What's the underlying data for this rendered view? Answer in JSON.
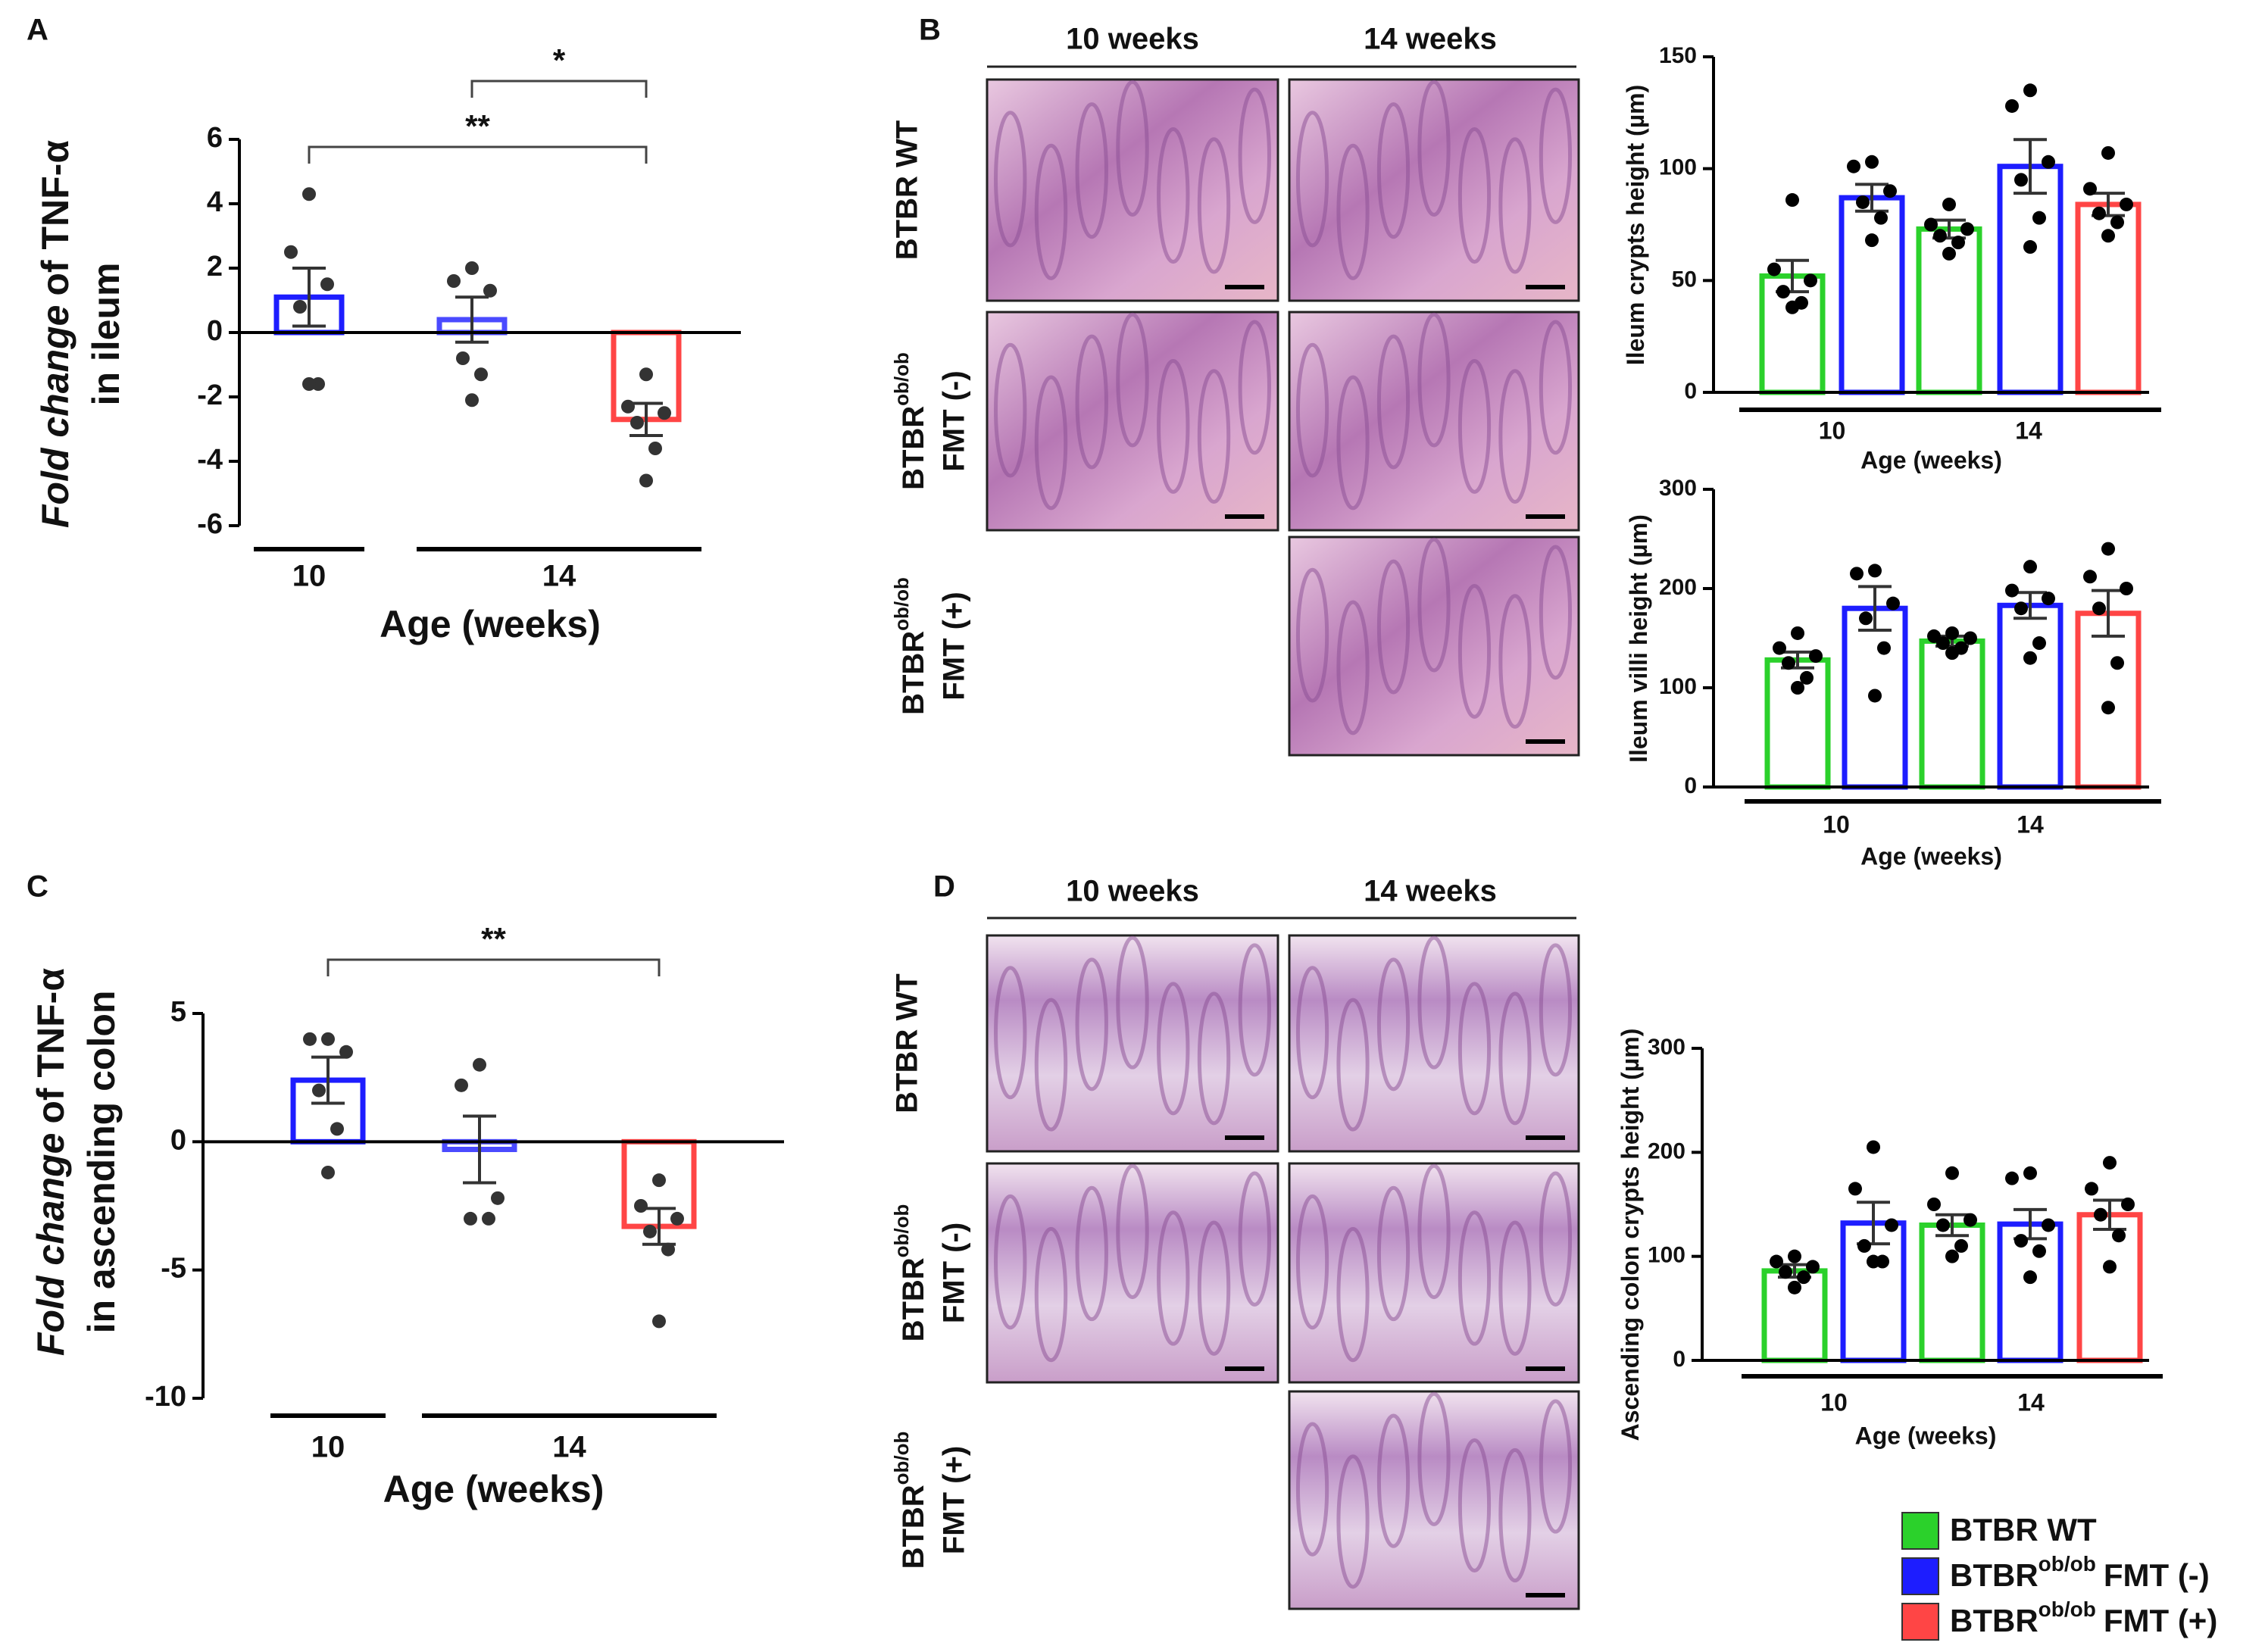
{
  "panel_labels": [
    "A",
    "B",
    "C",
    "D"
  ],
  "legend": [
    {
      "name": "BTBR WT",
      "color": "#2bd12b"
    },
    {
      "name": "BTBR",
      "sup": "ob/ob",
      "suffix": "FMT (-)",
      "color": "#1d1dff"
    },
    {
      "name": "BTBR",
      "sup": "ob/ob",
      "suffix": "FMT (+)",
      "color": "#ff4545"
    }
  ],
  "histology": [
    {
      "columns": [
        "10 weeks",
        "14 weeks"
      ],
      "rows": [
        {
          "name": "BTBR WT"
        },
        {
          "name": "BTBR",
          "sup": "ob/ob",
          "line2": "FMT (-)"
        },
        {
          "name": "BTBR",
          "sup": "ob/ob",
          "line2": "FMT (+)"
        }
      ]
    },
    {
      "columns": [
        "10 weeks",
        "14 weeks"
      ],
      "rows": [
        {
          "name": "BTBR WT"
        },
        {
          "name": "BTBR",
          "sup": "ob/ob",
          "line2": "FMT (-)"
        },
        {
          "name": "BTBR",
          "sup": "ob/ob",
          "line2": "FMT (+)"
        }
      ]
    }
  ],
  "chart_data": [
    {
      "type": "bar",
      "ylabel": {
        "italic": "Fold change",
        "text": "of TNF-α",
        "line2": "in ileum"
      },
      "xlabel": "Age (weeks)",
      "categories": [
        null,
        null,
        null
      ],
      "values": [
        1.1,
        0.4,
        -2.7
      ],
      "errors": [
        0.9,
        0.7,
        0.5
      ],
      "colors": [
        "#1d1dff",
        "#4a4aff",
        "#ff4545"
      ],
      "points": [
        [
          4.3,
          2.5,
          1.5,
          0.8,
          -1.6,
          -1.6
        ],
        [
          2.0,
          1.6,
          1.3,
          -0.8,
          -1.3,
          -2.1
        ],
        [
          -1.3,
          -2.3,
          -2.5,
          -2.8,
          -3.6,
          -4.6
        ]
      ],
      "groups": [
        {
          "label": "10",
          "bars": [
            0,
            0
          ]
        },
        {
          "label": "14",
          "bars": [
            1,
            2
          ]
        }
      ],
      "significance": [
        {
          "label": "*",
          "from": 1,
          "to": 2
        },
        {
          "label": "**",
          "from": 0,
          "to": 2
        }
      ],
      "ylim": [
        -6,
        6
      ],
      "yticks": [
        -6,
        -4,
        -2,
        0,
        2,
        4,
        6
      ]
    },
    {
      "type": "bar",
      "ylabel": {
        "text": "Ileum crypts height (µm)"
      },
      "xlabel": "Age (weeks)",
      "categories": [
        null,
        null,
        null,
        null,
        null
      ],
      "values": [
        52,
        87,
        73,
        101,
        84
      ],
      "errors": [
        7,
        6,
        4,
        12,
        5
      ],
      "colors": [
        "#2bd12b",
        "#1d1dff",
        "#2bd12b",
        "#1d1dff",
        "#ff4545"
      ],
      "points": [
        [
          86,
          55,
          50,
          45,
          40,
          38
        ],
        [
          103,
          101,
          90,
          85,
          78,
          68
        ],
        [
          84,
          75,
          73,
          70,
          67,
          62
        ],
        [
          135,
          128,
          103,
          95,
          78,
          65
        ],
        [
          107,
          91,
          84,
          80,
          76,
          70
        ]
      ],
      "groups": [
        {
          "label": "10",
          "bars": [
            0,
            1
          ]
        },
        {
          "label": "14",
          "bars": [
            2,
            4
          ]
        }
      ],
      "ylim": [
        0,
        150
      ],
      "yticks": [
        0,
        50,
        100,
        150
      ]
    },
    {
      "type": "bar",
      "ylabel": {
        "text": "Ileum villi height (µm)"
      },
      "xlabel": "Age (weeks)",
      "categories": [
        null,
        null,
        null,
        null,
        null
      ],
      "values": [
        128,
        180,
        147,
        183,
        175
      ],
      "errors": [
        8,
        22,
        5,
        13,
        23
      ],
      "colors": [
        "#2bd12b",
        "#1d1dff",
        "#2bd12b",
        "#1d1dff",
        "#ff4545"
      ],
      "points": [
        [
          155,
          140,
          132,
          125,
          110,
          100
        ],
        [
          218,
          215,
          185,
          170,
          140,
          92
        ],
        [
          155,
          152,
          150,
          145,
          140,
          135
        ],
        [
          222,
          198,
          190,
          180,
          145,
          130
        ],
        [
          240,
          212,
          200,
          180,
          125,
          80
        ]
      ],
      "groups": [
        {
          "label": "10",
          "bars": [
            0,
            1
          ]
        },
        {
          "label": "14",
          "bars": [
            2,
            4
          ]
        }
      ],
      "ylim": [
        0,
        300
      ],
      "yticks": [
        0,
        100,
        200,
        300
      ]
    },
    {
      "type": "bar",
      "ylabel": {
        "italic": "Fold change",
        "text": "of TNF-α",
        "line2": "in ascending colon"
      },
      "xlabel": "Age (weeks)",
      "categories": [
        null,
        null,
        null
      ],
      "values": [
        2.4,
        -0.3,
        -3.3
      ],
      "errors": [
        0.9,
        1.3,
        0.7
      ],
      "colors": [
        "#1d1dff",
        "#4a4aff",
        "#ff4545"
      ],
      "points": [
        [
          4,
          4,
          3.5,
          2,
          0.5,
          -1.2
        ],
        [
          3,
          2.2,
          -2.2,
          -3,
          -3
        ],
        [
          -1.5,
          -2.5,
          -3,
          -3.5,
          -4.2,
          -7
        ]
      ],
      "groups": [
        {
          "label": "10",
          "bars": [
            0,
            0
          ]
        },
        {
          "label": "14",
          "bars": [
            1,
            2
          ]
        }
      ],
      "significance": [
        {
          "label": "**",
          "from": 0,
          "to": 2
        }
      ],
      "ylim": [
        -10,
        5
      ],
      "yticks": [
        -10,
        -5,
        0,
        5
      ]
    },
    {
      "type": "bar",
      "ylabel": {
        "text": "Ascending colon crypts height  (µm)"
      },
      "xlabel": "Age (weeks)",
      "categories": [
        null,
        null,
        null,
        null,
        null
      ],
      "values": [
        86,
        132,
        130,
        131,
        140
      ],
      "errors": [
        6,
        20,
        10,
        14,
        14
      ],
      "colors": [
        "#2bd12b",
        "#1d1dff",
        "#2bd12b",
        "#1d1dff",
        "#ff4545"
      ],
      "points": [
        [
          100,
          95,
          90,
          85,
          80,
          70
        ],
        [
          205,
          165,
          130,
          110,
          95,
          95
        ],
        [
          180,
          150,
          135,
          130,
          110,
          100
        ],
        [
          180,
          175,
          130,
          115,
          105,
          80
        ],
        [
          190,
          165,
          150,
          140,
          120,
          90
        ]
      ],
      "groups": [
        {
          "label": "10",
          "bars": [
            0,
            1
          ]
        },
        {
          "label": "14",
          "bars": [
            2,
            4
          ]
        }
      ],
      "ylim": [
        0,
        300
      ],
      "yticks": [
        0,
        100,
        200,
        300
      ]
    }
  ]
}
